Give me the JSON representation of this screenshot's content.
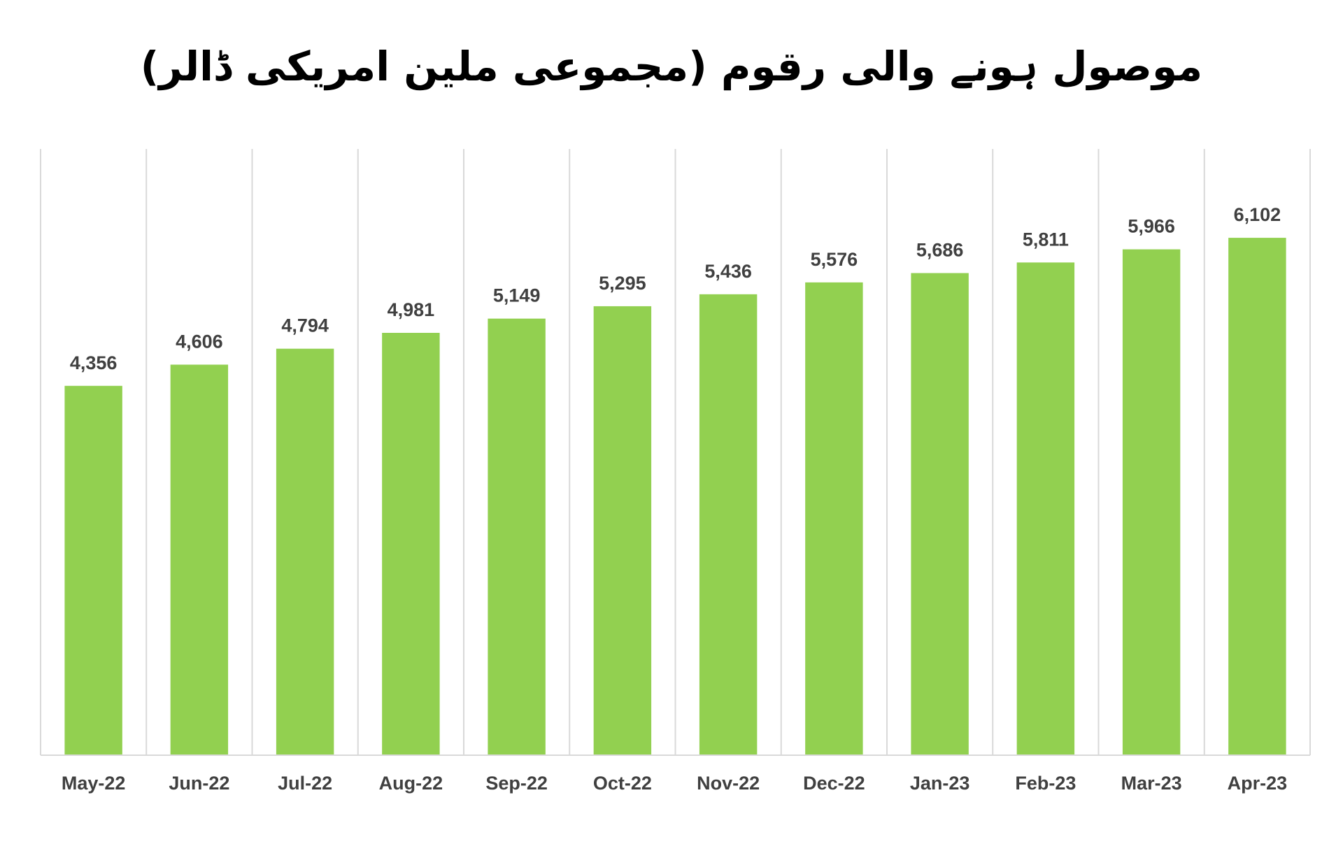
{
  "chart_data": {
    "type": "bar",
    "title": "موصول ہونے والی رقوم (مجموعی ملین امریکی ڈالر)",
    "xlabel": "",
    "ylabel": "",
    "ylim": [
      0,
      7150
    ],
    "grid": "vertical-category-separators",
    "legend": "none",
    "categories": [
      "May-22",
      "Jun-22",
      "Jul-22",
      "Aug-22",
      "Sep-22",
      "Oct-22",
      "Nov-22",
      "Dec-22",
      "Jan-23",
      "Feb-23",
      "Mar-23",
      "Apr-23"
    ],
    "values": [
      4356,
      4606,
      4794,
      4981,
      5149,
      5295,
      5436,
      5576,
      5686,
      5811,
      5966,
      6102
    ],
    "data_labels": [
      "4,356",
      "4,606",
      "4,794",
      "4,981",
      "5,149",
      "5,295",
      "5,436",
      "5,576",
      "5,686",
      "5,811",
      "5,966",
      "6,102"
    ],
    "colors": {
      "bar": "#92D050",
      "gridline": "#D9D9D9",
      "axis": "#D9D9D9",
      "label": "#404040"
    }
  }
}
